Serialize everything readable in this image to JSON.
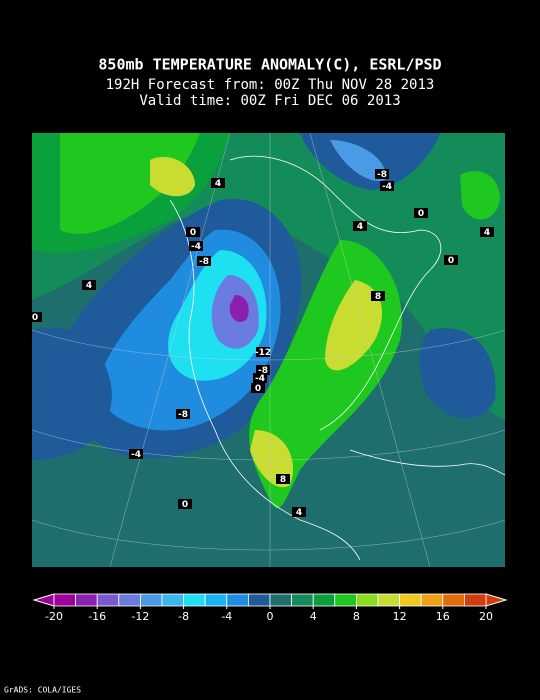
{
  "title": "850mb TEMPERATURE ANOMALY(C), ESRL/PSD",
  "subtitle": "192H Forecast from: 00Z Thu NOV 28 2013",
  "valid_time": "Valid time: 00Z Fri DEC 06 2013",
  "contour_labels": [
    "4",
    "-8",
    "-4",
    "0",
    "4",
    "4",
    "0",
    "-4",
    "-8",
    "0",
    "4",
    "8",
    "0",
    "-12",
    "-8",
    "-4",
    "0",
    "-8",
    "-4",
    "8",
    "0",
    "4"
  ],
  "colorbar": {
    "ticks": [
      -20,
      -16,
      -12,
      -8,
      -4,
      0,
      4,
      8,
      12,
      16,
      20
    ],
    "lim": [
      -20,
      20
    ],
    "colors": [
      "#a0009a",
      "#8a1fb0",
      "#7a5ad0",
      "#6a7ce0",
      "#4a9be6",
      "#39b8ec",
      "#1ee0f0",
      "#1ab4f5",
      "#1f8ce0",
      "#1f5a9a",
      "#1e6e6e",
      "#148c5a",
      "#0aa03c",
      "#1ec81e",
      "#8cdc1e",
      "#c8dc32",
      "#f0c81e",
      "#f0a014",
      "#e06e0a",
      "#d23c0a"
    ]
  },
  "credit": "GrADS: COLA/IGES"
}
